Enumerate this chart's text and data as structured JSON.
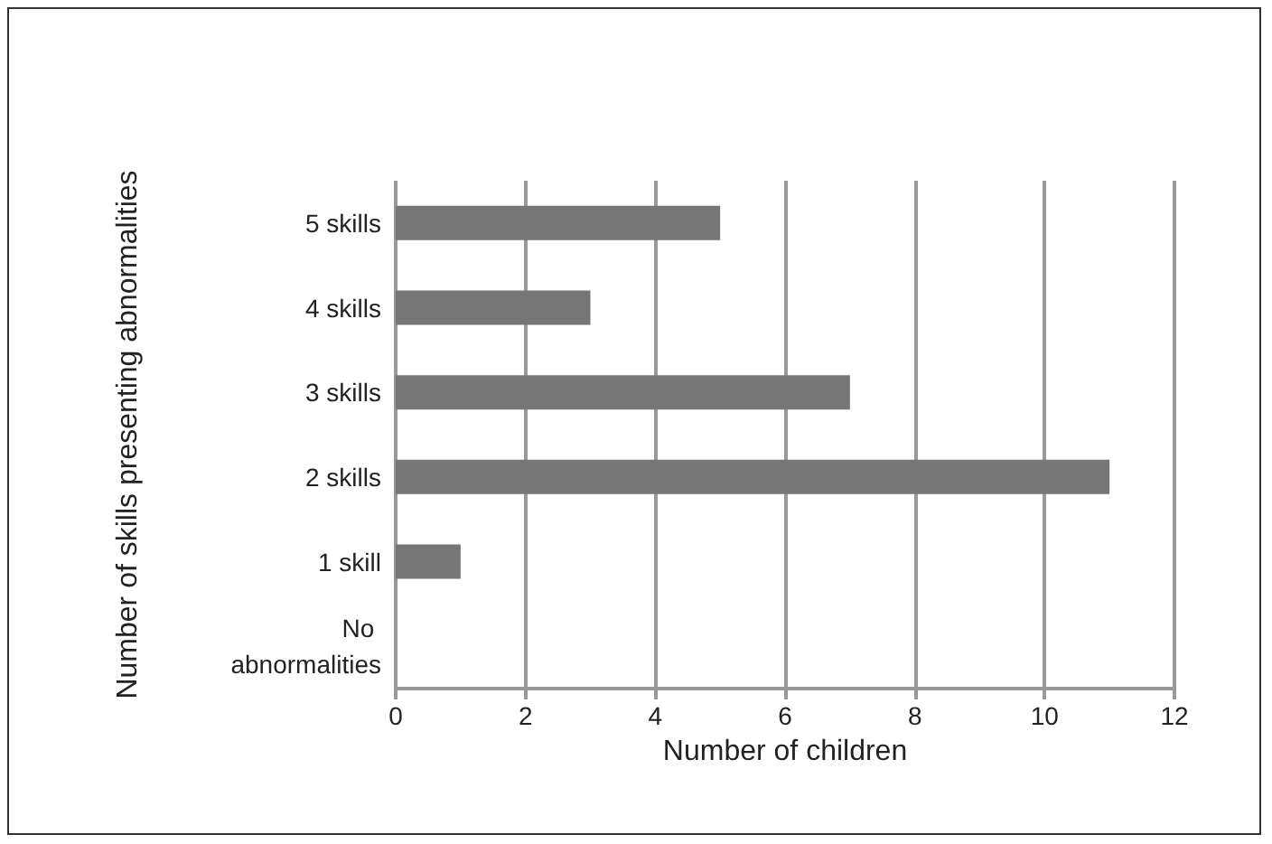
{
  "chart_data": {
    "type": "bar",
    "orientation": "horizontal",
    "xlabel": "Number of children",
    "ylabel": "Number of skills presenting abnormalities",
    "categories": [
      "5 skills",
      "4 skills",
      "3 skills",
      "2 skills",
      "1 skill",
      "No abnormalities"
    ],
    "values": [
      5,
      3,
      7,
      11,
      1,
      0
    ],
    "color": "#767676",
    "xlim": [
      0,
      12
    ],
    "xticks": [
      0,
      2,
      4,
      6,
      8,
      10,
      12
    ],
    "grid": "x"
  }
}
